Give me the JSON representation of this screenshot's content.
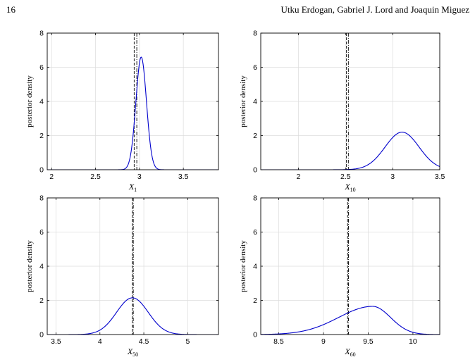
{
  "header": {
    "page_number": "16",
    "authors": "Utku Erdogan, Gabriel J. Lord and Joaquin Miguez"
  },
  "colors": {
    "curve": "#0000cc",
    "axis": "#000000",
    "grid": "#dcdcdc",
    "marker": "#000000"
  },
  "chart_data": [
    {
      "type": "line",
      "panel": "top-left",
      "ylabel": "posterior density",
      "xlabel_var": "X",
      "xlabel_sub": "1",
      "xlim": [
        1.95,
        3.9
      ],
      "ylim": [
        0,
        8
      ],
      "xticks": [
        2,
        2.5,
        3,
        3.5
      ],
      "xtick_labels": [
        "2",
        "2.5",
        "3",
        "3.5"
      ],
      "yticks": [
        0,
        2,
        4,
        6,
        8
      ],
      "ytick_labels": [
        "0",
        "2",
        "4",
        "6",
        "8"
      ],
      "grid": true,
      "vlines": [
        {
          "x": 2.94,
          "style": "dashed"
        },
        {
          "x": 2.97,
          "style": "dashdot"
        }
      ],
      "series": [
        {
          "kind": "gaussian",
          "mu": 3.02,
          "sigma": 0.06,
          "peak": 6.6
        }
      ]
    },
    {
      "type": "line",
      "panel": "top-right",
      "ylabel": "posterior density",
      "xlabel_var": "X",
      "xlabel_sub": "10",
      "xlim": [
        1.6,
        3.5
      ],
      "ylim": [
        0,
        8
      ],
      "xticks": [
        2,
        2.5,
        3,
        3.5
      ],
      "xtick_labels": [
        "2",
        "2.5",
        "3",
        "3.5"
      ],
      "yticks": [
        0,
        2,
        4,
        6,
        8
      ],
      "ytick_labels": [
        "0",
        "2",
        "4",
        "6",
        "8"
      ],
      "grid": true,
      "vlines": [
        {
          "x": 2.51,
          "style": "dashed"
        },
        {
          "x": 2.53,
          "style": "dashdot"
        }
      ],
      "series": [
        {
          "kind": "gaussian",
          "mu": 3.1,
          "sigma": 0.18,
          "peak": 2.2
        }
      ]
    },
    {
      "type": "line",
      "panel": "bottom-left",
      "ylabel": "posterior density",
      "xlabel_var": "X",
      "xlabel_sub": "50",
      "xlim": [
        3.4,
        5.35
      ],
      "ylim": [
        0,
        8
      ],
      "xticks": [
        3.5,
        4,
        4.5,
        5
      ],
      "xtick_labels": [
        "3.5",
        "4",
        "4.5",
        "5"
      ],
      "yticks": [
        0,
        2,
        4,
        6,
        8
      ],
      "ytick_labels": [
        "0",
        "2",
        "4",
        "6",
        "8"
      ],
      "grid": true,
      "vlines": [
        {
          "x": 4.37,
          "style": "dashed"
        },
        {
          "x": 4.38,
          "style": "dashdot"
        }
      ],
      "series": [
        {
          "kind": "gaussian",
          "mu": 4.37,
          "sigma": 0.18,
          "peak": 2.15
        }
      ]
    },
    {
      "type": "line",
      "panel": "bottom-right",
      "ylabel": "posterior density",
      "xlabel_var": "X",
      "xlabel_sub": "60",
      "xlim": [
        8.3,
        10.3
      ],
      "ylim": [
        0,
        8
      ],
      "xticks": [
        8.5,
        9,
        9.5,
        10
      ],
      "xtick_labels": [
        "8.5",
        "9",
        "9.5",
        "10"
      ],
      "yticks": [
        0,
        2,
        4,
        6,
        8
      ],
      "ytick_labels": [
        "0",
        "2",
        "4",
        "6",
        "8"
      ],
      "grid": true,
      "vlines": [
        {
          "x": 9.27,
          "style": "dashed"
        },
        {
          "x": 9.28,
          "style": "dashdot"
        }
      ],
      "series": [
        {
          "kind": "skew-gaussian",
          "mu": 9.55,
          "sigma_left": 0.38,
          "sigma_right": 0.2,
          "peak": 1.65
        }
      ]
    }
  ]
}
